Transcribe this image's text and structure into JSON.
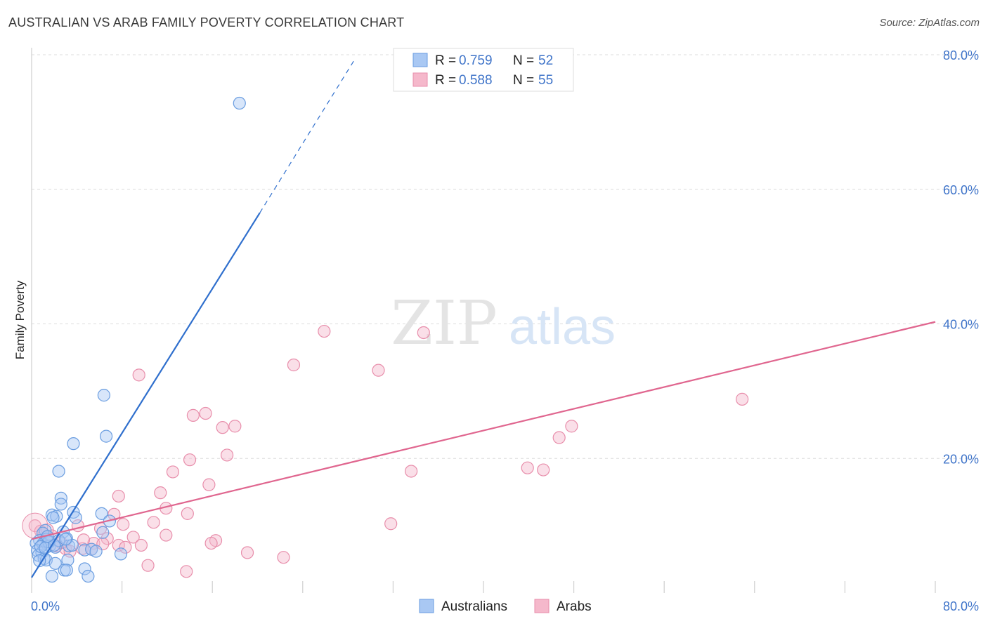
{
  "header": {
    "title": "AUSTRALIAN VS ARAB FAMILY POVERTY CORRELATION CHART",
    "source": "Source: ZipAtlas.com"
  },
  "watermark": {
    "zip": "ZIP",
    "atlas": "atlas"
  },
  "legend": {
    "australians": {
      "r_label": "R =",
      "r_value": "0.759",
      "n_label": "N =",
      "n_value": "52"
    },
    "arabs": {
      "r_label": "R =",
      "r_value": "0.588",
      "n_label": "N =",
      "n_value": "55"
    }
  },
  "colors": {
    "australians_fill": "#a9c8f3",
    "australians_stroke": "#6a9de0",
    "australians_line": "#2f6fcd",
    "arabs_fill": "#f5b8cb",
    "arabs_stroke": "#e88eab",
    "arabs_line": "#e0668f",
    "tick_text": "#3f74c9",
    "grid": "#dcdcdc"
  },
  "chart_data": {
    "type": "scatter",
    "title": "AUSTRALIAN VS ARAB FAMILY POVERTY CORRELATION CHART",
    "xlabel": "",
    "ylabel": "Family Poverty",
    "xlim": [
      0,
      80
    ],
    "ylim": [
      0,
      80
    ],
    "x_tick_labels": [
      "0.0%",
      "80.0%"
    ],
    "y_ticks": [
      20,
      40,
      60,
      80
    ],
    "y_tick_labels": [
      "20.0%",
      "40.0%",
      "60.0%",
      "80.0%"
    ],
    "series": [
      {
        "name": "Australians",
        "r": 0.759,
        "n": 52,
        "trend": {
          "x0": 0,
          "y0": 2.3,
          "x1": 20.2,
          "y1": 56.5,
          "dash_x1": 28.6,
          "dash_y1": 79.3
        },
        "points": [
          [
            18.4,
            72.8
          ],
          [
            6.4,
            29.4
          ],
          [
            6.6,
            23.3
          ],
          [
            3.7,
            22.2
          ],
          [
            2.4,
            18.1
          ],
          [
            2.6,
            14.1
          ],
          [
            2.6,
            13.2
          ],
          [
            1.8,
            11.6
          ],
          [
            2.2,
            11.4
          ],
          [
            1.9,
            11.2
          ],
          [
            3.7,
            12.0
          ],
          [
            6.2,
            11.8
          ],
          [
            3.9,
            11.2
          ],
          [
            6.9,
            10.7
          ],
          [
            6.3,
            9.0
          ],
          [
            1.2,
            9.3
          ],
          [
            1.0,
            8.9
          ],
          [
            2.8,
            9.1
          ],
          [
            3.1,
            8.1
          ],
          [
            1.3,
            8.0
          ],
          [
            1.6,
            7.6
          ],
          [
            0.7,
            7.8
          ],
          [
            0.4,
            7.4
          ],
          [
            1.0,
            7.3
          ],
          [
            1.6,
            7.0
          ],
          [
            2.1,
            6.8
          ],
          [
            3.3,
            7.0
          ],
          [
            3.6,
            7.1
          ],
          [
            4.7,
            6.4
          ],
          [
            5.3,
            6.5
          ],
          [
            0.5,
            6.3
          ],
          [
            0.9,
            6.0
          ],
          [
            0.6,
            5.6
          ],
          [
            1.1,
            5.1
          ],
          [
            1.3,
            4.9
          ],
          [
            0.7,
            4.8
          ],
          [
            2.1,
            4.4
          ],
          [
            3.2,
            4.9
          ],
          [
            7.9,
            5.8
          ],
          [
            2.9,
            3.4
          ],
          [
            3.1,
            3.4
          ],
          [
            4.7,
            3.6
          ],
          [
            1.8,
            2.5
          ],
          [
            5.0,
            2.5
          ],
          [
            2.4,
            7.8
          ],
          [
            1.5,
            7.6
          ],
          [
            0.8,
            6.9
          ],
          [
            3.0,
            8.0
          ],
          [
            1.2,
            6.7
          ],
          [
            5.7,
            6.2
          ],
          [
            2.0,
            7.1
          ],
          [
            1.4,
            8.4
          ]
        ]
      },
      {
        "name": "Arabs",
        "r": 0.588,
        "n": 55,
        "trend": {
          "x0": 0,
          "y0": 8.0,
          "x1": 80,
          "y1": 40.3
        },
        "points": [
          [
            0.3,
            10.0
          ],
          [
            25.9,
            38.9
          ],
          [
            34.7,
            38.7
          ],
          [
            23.2,
            33.9
          ],
          [
            30.7,
            33.1
          ],
          [
            9.5,
            32.4
          ],
          [
            62.9,
            28.8
          ],
          [
            14.3,
            26.4
          ],
          [
            15.4,
            26.7
          ],
          [
            16.9,
            24.6
          ],
          [
            18.0,
            24.8
          ],
          [
            47.8,
            24.8
          ],
          [
            46.7,
            23.1
          ],
          [
            17.3,
            20.5
          ],
          [
            14.0,
            19.8
          ],
          [
            12.5,
            18.0
          ],
          [
            33.6,
            18.1
          ],
          [
            43.9,
            18.6
          ],
          [
            45.3,
            18.3
          ],
          [
            15.7,
            16.1
          ],
          [
            7.7,
            14.4
          ],
          [
            11.4,
            14.9
          ],
          [
            11.9,
            12.6
          ],
          [
            13.8,
            11.8
          ],
          [
            7.3,
            11.7
          ],
          [
            10.8,
            10.5
          ],
          [
            8.1,
            10.2
          ],
          [
            31.8,
            10.3
          ],
          [
            4.1,
            10.0
          ],
          [
            6.1,
            9.6
          ],
          [
            0.8,
            9.2
          ],
          [
            1.8,
            8.5
          ],
          [
            6.7,
            8.1
          ],
          [
            9.0,
            8.3
          ],
          [
            11.9,
            8.6
          ],
          [
            5.5,
            7.4
          ],
          [
            7.7,
            7.1
          ],
          [
            16.3,
            7.8
          ],
          [
            15.9,
            7.4
          ],
          [
            9.7,
            7.1
          ],
          [
            2.2,
            7.0
          ],
          [
            3.0,
            6.6
          ],
          [
            4.5,
            6.6
          ],
          [
            19.1,
            6.0
          ],
          [
            5.3,
            6.5
          ],
          [
            22.3,
            5.3
          ],
          [
            10.3,
            4.1
          ],
          [
            13.7,
            3.2
          ],
          [
            8.3,
            6.8
          ],
          [
            3.4,
            6.2
          ],
          [
            1.1,
            8.7
          ],
          [
            2.6,
            7.5
          ],
          [
            4.6,
            7.9
          ],
          [
            6.3,
            7.3
          ],
          [
            1.4,
            9.4
          ]
        ]
      }
    ]
  }
}
